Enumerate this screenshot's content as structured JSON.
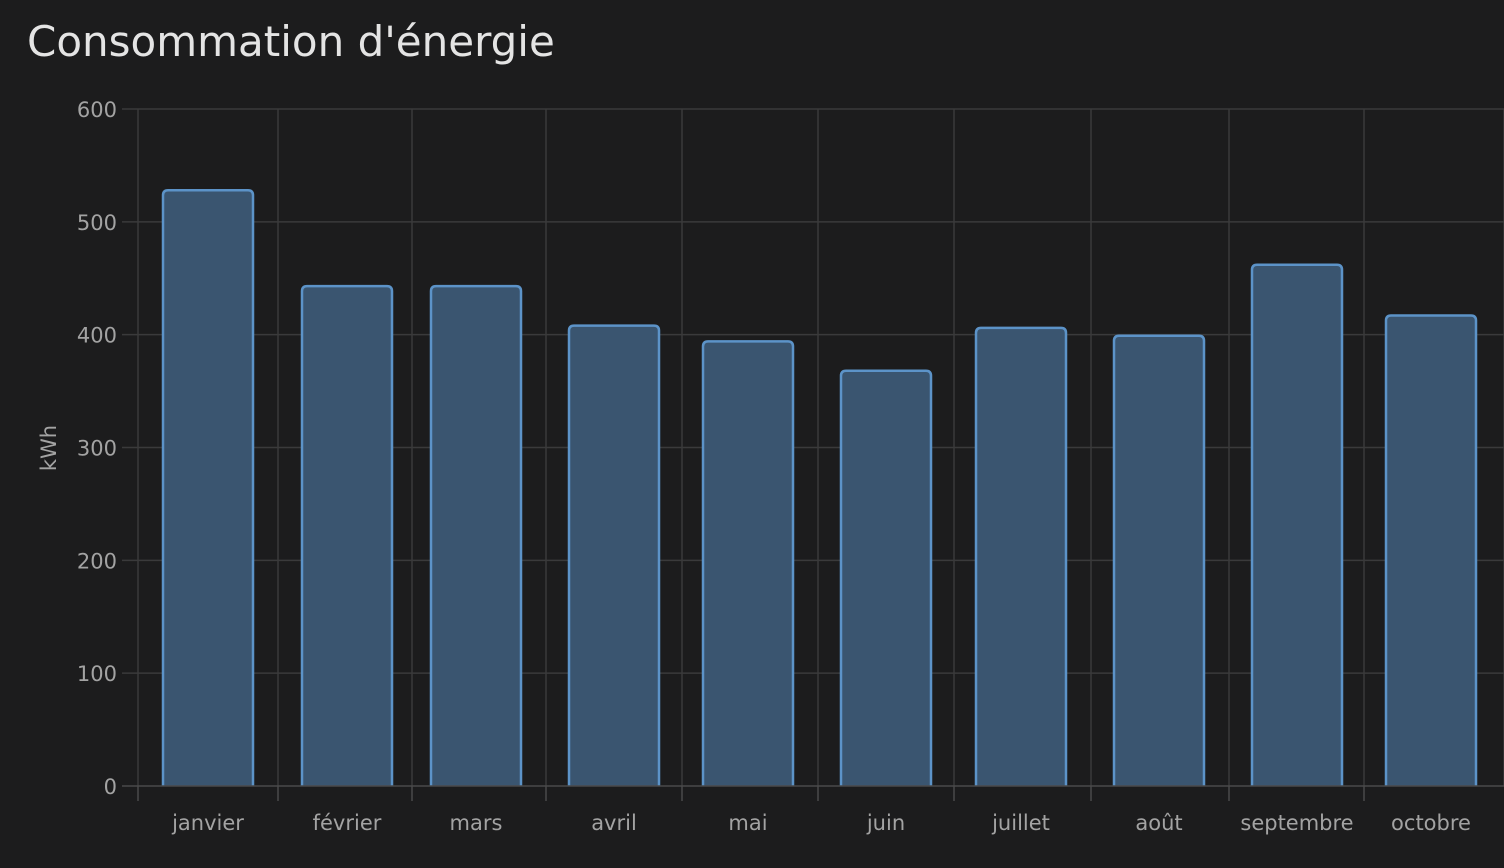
{
  "card": {
    "title": "Consommation d'énergie"
  },
  "colors": {
    "background": "#1c1c1d",
    "bar_fill": "#3a5570",
    "bar_stroke": "#5c93c8",
    "grid": "#3a3a3b",
    "text": "#a3a3a3"
  },
  "chart_data": {
    "type": "bar",
    "title": "Consommation d'énergie",
    "xlabel": "",
    "ylabel": "kWh",
    "ylim": [
      0,
      600
    ],
    "yticks": [
      "0",
      "100",
      "200",
      "300",
      "400",
      "500",
      "600"
    ],
    "grid": true,
    "categories": [
      "janvier",
      "février",
      "mars",
      "avril",
      "mai",
      "juin",
      "juillet",
      "août",
      "septembre",
      "octobre"
    ],
    "series": [
      {
        "values": [
          528,
          443,
          443,
          408,
          394,
          368,
          406,
          399,
          462,
          417
        ]
      }
    ]
  }
}
